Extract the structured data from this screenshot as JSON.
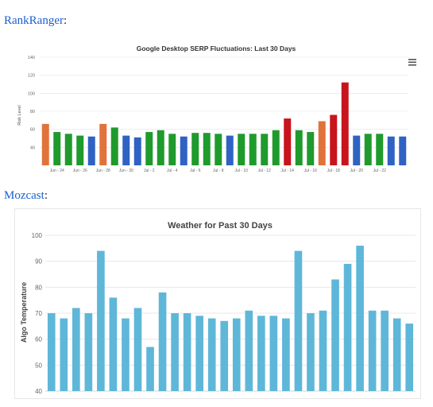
{
  "sections": {
    "rankranger": {
      "name": "RankRanger",
      "suffix": ":"
    },
    "mozcast": {
      "name": "Mozcast",
      "suffix": ":"
    }
  },
  "menu_icon": "hamburger-menu-icon",
  "colors": {
    "green": "#1f9a2c",
    "blue": "#2f62c2",
    "orange": "#e0733b",
    "red": "#c8141c",
    "mozcast_bar": "#5eb7d8",
    "grid": "#e3e3e3",
    "axis_text": "#666666"
  },
  "chart_data": [
    {
      "id": "rankranger",
      "type": "bar",
      "title": "Google Desktop SERP Fluctuations: Last 30 Days",
      "ylabel": "Risk Level",
      "xlabel": "",
      "ylim": [
        20,
        140
      ],
      "yticks": [
        40,
        60,
        80,
        100,
        120,
        140
      ],
      "grid": true,
      "x_tick_labels": [
        "Jun - 24",
        "Jun - 26",
        "Jun - 28",
        "Jun - 30",
        "Jul - 2",
        "Jul - 4",
        "Jul - 6",
        "Jul - 8",
        "Jul - 10",
        "Jul - 12",
        "Jul - 14",
        "Jul - 16",
        "Jul - 18",
        "Jul - 20",
        "Jul - 22"
      ],
      "values": [
        66,
        57,
        55,
        53,
        52,
        66,
        62,
        53,
        51,
        57,
        59,
        55,
        52,
        56,
        56,
        55,
        53,
        55,
        55,
        55,
        59,
        72,
        59,
        57,
        69,
        76,
        112,
        53,
        55,
        55,
        52,
        52
      ],
      "bar_colors": [
        "orange",
        "green",
        "green",
        "green",
        "blue",
        "orange",
        "green",
        "blue",
        "blue",
        "green",
        "green",
        "green",
        "blue",
        "green",
        "green",
        "green",
        "blue",
        "green",
        "green",
        "green",
        "green",
        "red",
        "green",
        "green",
        "orange",
        "red",
        "red",
        "blue",
        "green",
        "green",
        "blue",
        "blue"
      ]
    },
    {
      "id": "mozcast",
      "type": "bar",
      "title": "Weather for Past 30 Days",
      "ylabel": "Algo Temperature",
      "xlabel": "",
      "ylim": [
        40,
        100
      ],
      "yticks": [
        40,
        50,
        60,
        70,
        80,
        90,
        100
      ],
      "grid": true,
      "values": [
        70,
        68,
        72,
        70,
        94,
        76,
        68,
        72,
        57,
        78,
        70,
        70,
        69,
        68,
        67,
        68,
        71,
        69,
        69,
        68,
        94,
        70,
        71,
        83,
        89,
        96,
        71,
        71,
        68,
        66
      ]
    }
  ]
}
